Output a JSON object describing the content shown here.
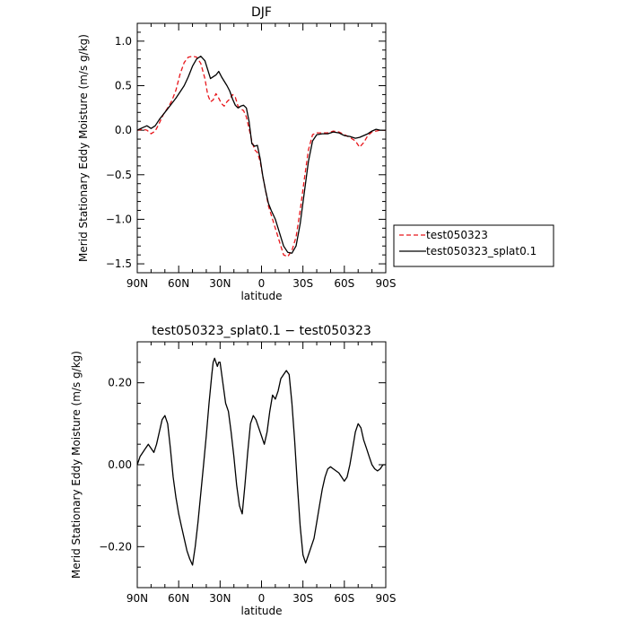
{
  "chart_data": [
    {
      "type": "line",
      "title": "DJF",
      "xlabel": "latitude",
      "ylabel": "Merid Stationary Eddy Moisture (m/s g/kg)",
      "xlim": [
        90,
        -90
      ],
      "ylim": [
        -1.6,
        1.2
      ],
      "xticks": [
        90,
        60,
        30,
        0,
        -30,
        -60,
        -90
      ],
      "xtick_labels": [
        "90N",
        "60N",
        "30N",
        "0",
        "30S",
        "60S",
        "90S"
      ],
      "yticks": [
        1.0,
        0.5,
        0.0,
        -0.5,
        -1.0,
        -1.5
      ],
      "ytick_labels": [
        "1.0",
        "0.5",
        "0.0",
        "−0.5",
        "−1.0",
        "−1.5"
      ],
      "legend": "right",
      "series": [
        {
          "name": "test050323",
          "color": "#e8161b",
          "dash": "dashed",
          "x": [
            90,
            86,
            83,
            80,
            77,
            74,
            71,
            68,
            65,
            62,
            59,
            56,
            53,
            50,
            47,
            44,
            41,
            39,
            37,
            35,
            33,
            31,
            29,
            27,
            25,
            23,
            21,
            19,
            17,
            15,
            13,
            11,
            9,
            7,
            5,
            3,
            1,
            -1,
            -3,
            -5,
            -7,
            -10,
            -13,
            -16,
            -19,
            -22,
            -25,
            -28,
            -31,
            -34,
            -37,
            -40,
            -44,
            -48,
            -52,
            -56,
            -60,
            -64,
            -68,
            -71,
            -74,
            -77,
            -80,
            -83,
            -86,
            -90
          ],
          "y": [
            0.0,
            0.01,
            0.0,
            -0.04,
            -0.01,
            0.08,
            0.18,
            0.25,
            0.33,
            0.45,
            0.63,
            0.76,
            0.82,
            0.83,
            0.82,
            0.75,
            0.58,
            0.4,
            0.32,
            0.34,
            0.41,
            0.36,
            0.3,
            0.27,
            0.32,
            0.35,
            0.4,
            0.37,
            0.27,
            0.24,
            0.22,
            0.15,
            0.02,
            -0.12,
            -0.22,
            -0.25,
            -0.35,
            -0.52,
            -0.68,
            -0.85,
            -0.95,
            -1.1,
            -1.25,
            -1.4,
            -1.42,
            -1.35,
            -1.2,
            -0.9,
            -0.55,
            -0.22,
            -0.05,
            -0.03,
            -0.03,
            -0.03,
            -0.01,
            -0.02,
            -0.05,
            -0.08,
            -0.12,
            -0.19,
            -0.14,
            -0.06,
            -0.02,
            -0.01,
            0.0,
            0.0
          ]
        },
        {
          "name": "test050323_splat0.1",
          "color": "#000000",
          "dash": "solid",
          "x": [
            90,
            86,
            83,
            80,
            77,
            74,
            71,
            68,
            65,
            62,
            59,
            56,
            53,
            50,
            47,
            44,
            41,
            39,
            37,
            35,
            33,
            31,
            29,
            27,
            25,
            23,
            21,
            19,
            17,
            15,
            13,
            11,
            9,
            7,
            5,
            3,
            1,
            -1,
            -3,
            -5,
            -7,
            -10,
            -13,
            -16,
            -19,
            -22,
            -25,
            -28,
            -31,
            -34,
            -37,
            -40,
            -44,
            -48,
            -52,
            -56,
            -60,
            -64,
            -68,
            -71,
            -74,
            -77,
            -80,
            -83,
            -86,
            -90
          ],
          "y": [
            0.0,
            0.03,
            0.05,
            0.02,
            0.05,
            0.12,
            0.18,
            0.24,
            0.3,
            0.36,
            0.43,
            0.5,
            0.6,
            0.72,
            0.8,
            0.83,
            0.78,
            0.68,
            0.58,
            0.6,
            0.62,
            0.66,
            0.6,
            0.55,
            0.5,
            0.44,
            0.35,
            0.28,
            0.25,
            0.27,
            0.28,
            0.25,
            0.1,
            -0.15,
            -0.18,
            -0.17,
            -0.32,
            -0.52,
            -0.68,
            -0.82,
            -0.9,
            -1.0,
            -1.15,
            -1.3,
            -1.37,
            -1.38,
            -1.3,
            -1.05,
            -0.7,
            -0.35,
            -0.12,
            -0.05,
            -0.04,
            -0.04,
            -0.02,
            -0.03,
            -0.06,
            -0.07,
            -0.09,
            -0.08,
            -0.06,
            -0.04,
            -0.01,
            0.01,
            0.0,
            0.0
          ]
        }
      ]
    },
    {
      "type": "line",
      "title": "test050323_splat0.1 − test050323",
      "xlabel": "latitude",
      "ylabel": "Merid Stationary Eddy Moisture (m/s g/kg)",
      "xlim": [
        90,
        -90
      ],
      "ylim": [
        -0.3,
        0.3
      ],
      "xticks": [
        90,
        60,
        30,
        0,
        -30,
        -60,
        -90
      ],
      "xtick_labels": [
        "90N",
        "60N",
        "30N",
        "0",
        "30S",
        "60S",
        "90S"
      ],
      "yticks": [
        0.2,
        0.0,
        -0.2
      ],
      "ytick_labels": [
        "0.20",
        "0.00",
        "−0.20"
      ],
      "series": [
        {
          "color": "#000000",
          "dash": "solid",
          "x": [
            90,
            88,
            86,
            84,
            82,
            80,
            78,
            76,
            74,
            72,
            70,
            68,
            66,
            64,
            62,
            60,
            58,
            56,
            54,
            52,
            50,
            48,
            46,
            44,
            42,
            40,
            38,
            36,
            35,
            34,
            33,
            32,
            31,
            30,
            28,
            26,
            24,
            22,
            20,
            18,
            16,
            14,
            12,
            10,
            8,
            6,
            4,
            2,
            0,
            -2,
            -4,
            -6,
            -8,
            -10,
            -12,
            -14,
            -16,
            -18,
            -20,
            -22,
            -24,
            -26,
            -28,
            -30,
            -32,
            -34,
            -36,
            -38,
            -40,
            -42,
            -44,
            -46,
            -48,
            -50,
            -52,
            -54,
            -56,
            -58,
            -60,
            -62,
            -64,
            -66,
            -68,
            -70,
            -72,
            -74,
            -76,
            -78,
            -80,
            -82,
            -84,
            -86,
            -88,
            -90
          ],
          "y": [
            0.0,
            0.02,
            0.03,
            0.04,
            0.05,
            0.04,
            0.03,
            0.05,
            0.08,
            0.11,
            0.12,
            0.1,
            0.04,
            -0.03,
            -0.08,
            -0.12,
            -0.15,
            -0.18,
            -0.21,
            -0.23,
            -0.245,
            -0.2,
            -0.14,
            -0.07,
            0.0,
            0.07,
            0.15,
            0.22,
            0.25,
            0.26,
            0.25,
            0.24,
            0.25,
            0.25,
            0.2,
            0.15,
            0.13,
            0.08,
            0.02,
            -0.05,
            -0.1,
            -0.12,
            -0.05,
            0.03,
            0.1,
            0.12,
            0.11,
            0.09,
            0.07,
            0.05,
            0.08,
            0.13,
            0.17,
            0.16,
            0.18,
            0.21,
            0.22,
            0.23,
            0.22,
            0.15,
            0.06,
            -0.05,
            -0.15,
            -0.22,
            -0.24,
            -0.22,
            -0.2,
            -0.18,
            -0.14,
            -0.1,
            -0.06,
            -0.03,
            -0.01,
            -0.005,
            -0.01,
            -0.015,
            -0.02,
            -0.03,
            -0.04,
            -0.03,
            0.0,
            0.04,
            0.08,
            0.1,
            0.09,
            0.06,
            0.04,
            0.02,
            0.0,
            -0.01,
            -0.015,
            -0.01,
            0.0,
            0.0
          ]
        }
      ]
    }
  ]
}
